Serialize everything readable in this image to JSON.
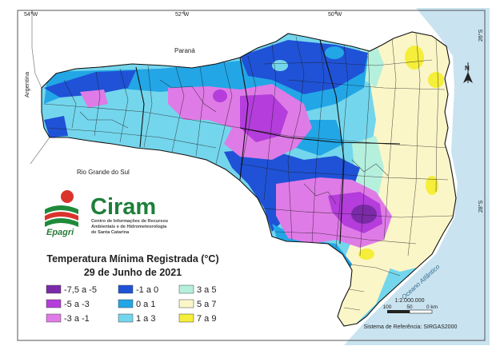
{
  "map": {
    "coords": {
      "top_left": "54°W",
      "top_mid": "52°W",
      "top_right": "50°W",
      "right_top": "26°S",
      "right_mid": "28°S"
    },
    "labels": {
      "parana": "Paraná",
      "argentina": "Argentina",
      "rio_grande_do_sul": "Rio Grande do Sul",
      "ocean": "Oceano Atlântico",
      "north": "N"
    },
    "logo": {
      "brand": "Ciram",
      "epagri": "Epagri",
      "line1": "Centro de Informações de Recursos",
      "line2": "Ambientais e de Hidrometeorologia",
      "line3": "de Santa Catarina"
    },
    "title": {
      "line1": "Temperatura Mínima Registrada (°C)",
      "line2": "29 de Junho de 2021"
    },
    "legend": [
      {
        "label": "-7,5 a -5",
        "color": "#7b2aa8"
      },
      {
        "label": "-5 a -3",
        "color": "#b43ddb"
      },
      {
        "label": "-3 a -1",
        "color": "#df7be6"
      },
      {
        "label": "-1 a 0",
        "color": "#1f52d6"
      },
      {
        "label": "0 a 1",
        "color": "#22a6e6"
      },
      {
        "label": "1 a 3",
        "color": "#74d6ec"
      },
      {
        "label": "3 a 5",
        "color": "#b5f0dd"
      },
      {
        "label": "5 a 7",
        "color": "#fbf6c8"
      },
      {
        "label": "7 a 9",
        "color": "#f5ee3a"
      }
    ],
    "scale": {
      "ratio": "1:2.000.000",
      "ticks": [
        "100",
        "50",
        "0 km"
      ],
      "reference": "Sistema de Referência: SIRGAS2000"
    }
  }
}
